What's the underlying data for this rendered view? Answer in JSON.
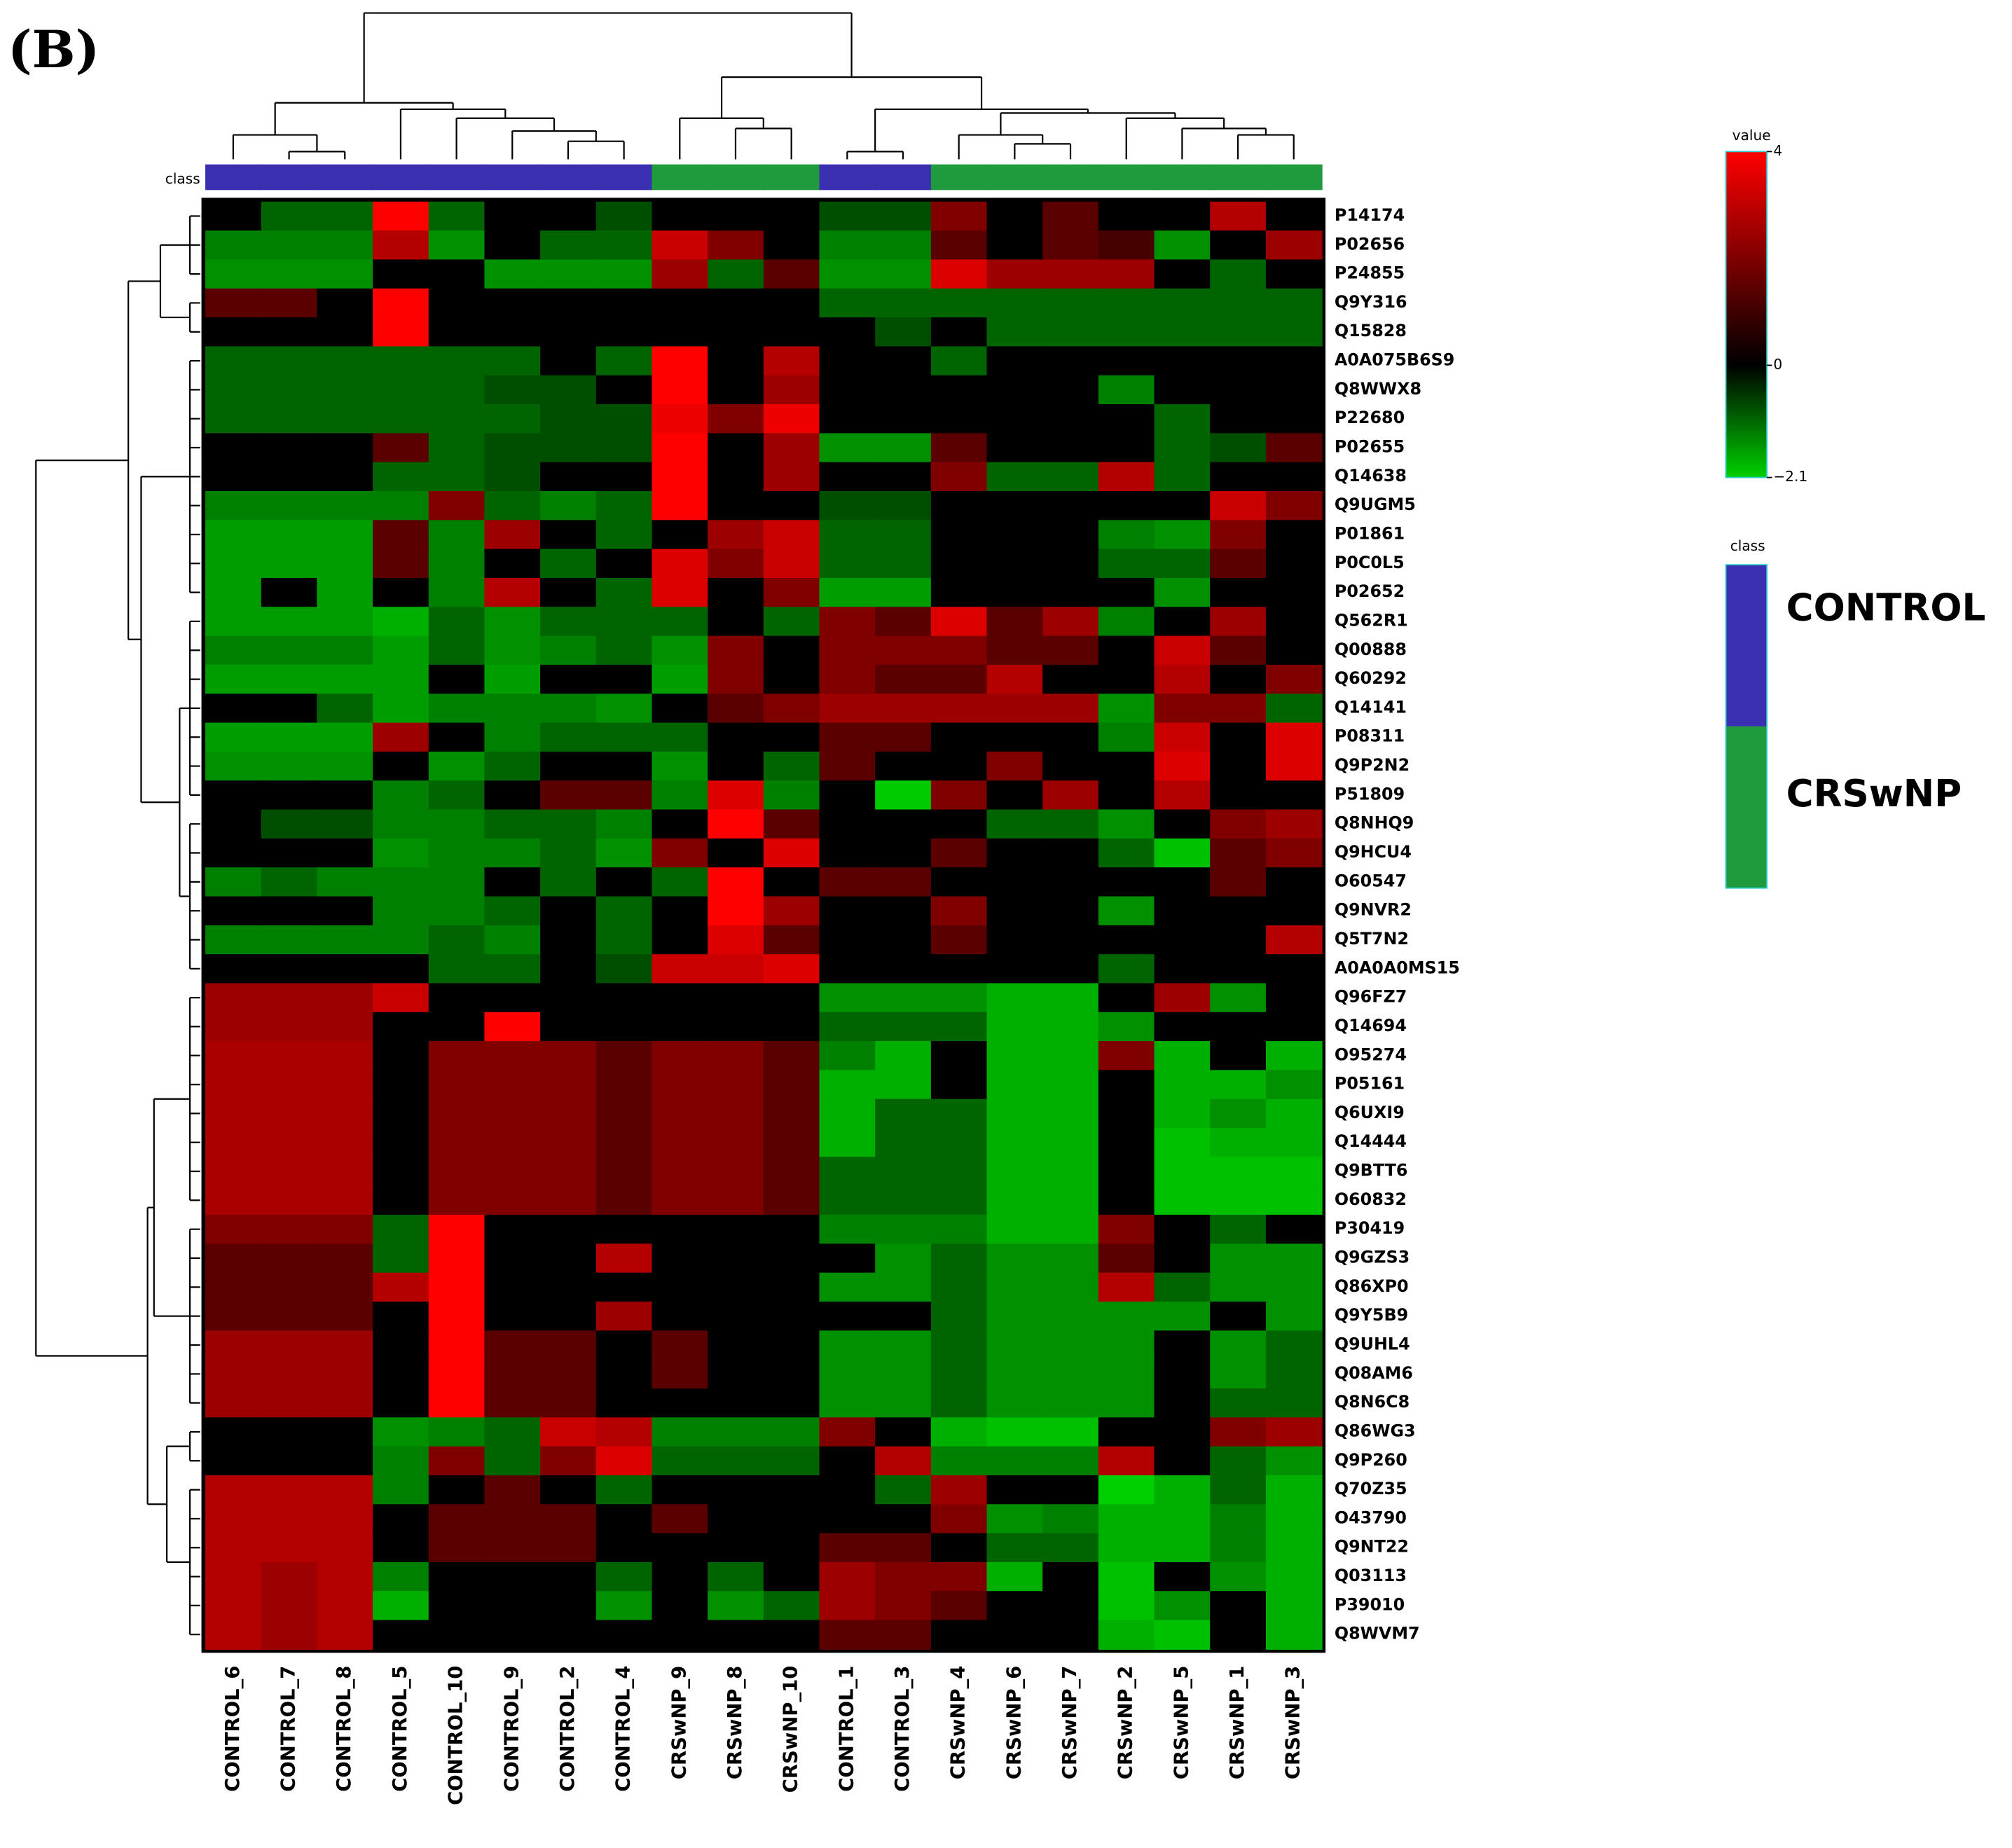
{
  "chart_data": {
    "type": "heatmap",
    "title": "(B)",
    "class_bar_label": "class",
    "columns": [
      "CONTROL_6",
      "CONTROL_7",
      "CONTROL_8",
      "CONTROL_5",
      "CONTROL_10",
      "CONTROL_9",
      "CONTROL_2",
      "CONTROL_4",
      "CRSwNP_9",
      "CRSwNP_8",
      "CRSwNP_10",
      "CONTROL_1",
      "CONTROL_3",
      "CRSwNP_4",
      "CRSwNP_6",
      "CRSwNP_7",
      "CRSwNP_2",
      "CRSwNP_5",
      "CRSwNP_1",
      "CRSwNP_3"
    ],
    "column_class": [
      "CONTROL",
      "CONTROL",
      "CONTROL",
      "CONTROL",
      "CONTROL",
      "CONTROL",
      "CONTROL",
      "CONTROL",
      "CRSwNP",
      "CRSwNP",
      "CRSwNP",
      "CONTROL",
      "CONTROL",
      "CRSwNP",
      "CRSwNP",
      "CRSwNP",
      "CRSwNP",
      "CRSwNP",
      "CRSwNP",
      "CRSwNP"
    ],
    "rows": [
      "P14174",
      "P02656",
      "P24855",
      "Q9Y316",
      "Q15828",
      "A0A075B6S9",
      "Q8WWX8",
      "P22680",
      "P02655",
      "Q14638",
      "Q9UGM5",
      "P01861",
      "P0C0L5",
      "P02652",
      "Q562R1",
      "Q00888",
      "Q60292",
      "Q14141",
      "P08311",
      "Q9P2N2",
      "P51809",
      "Q8NHQ9",
      "Q9HCU4",
      "O60547",
      "Q9NVR2",
      "Q5T7N2",
      "A0A0A0MS15",
      "Q96FZ7",
      "Q14694",
      "O95274",
      "P05161",
      "Q6UXI9",
      "Q14444",
      "Q9BTT6",
      "O60832",
      "P30419",
      "Q9GZS3",
      "Q86XP0",
      "Q9Y5B9",
      "Q9UHL4",
      "Q08AM6",
      "Q8N6C8",
      "Q86WG3",
      "Q9P260",
      "Q70Z35",
      "O43790",
      "Q9NT22",
      "Q03113",
      "P39010",
      "Q8WVM7"
    ],
    "values": [
      [
        0,
        -0.5,
        -0.5,
        4,
        -0.5,
        0,
        0,
        -0.3,
        0,
        0,
        0,
        -0.3,
        -0.3,
        1,
        0,
        0.5,
        0,
        0,
        2,
        0
      ],
      [
        -0.8,
        -0.8,
        -0.8,
        2,
        -1,
        0,
        -0.5,
        -0.5,
        2.5,
        1,
        0,
        -0.8,
        -0.8,
        0.5,
        0,
        0.5,
        0.3,
        -1,
        0,
        1.5
      ],
      [
        -1,
        -1,
        -1,
        0,
        0,
        -1,
        -1,
        -1,
        1.5,
        -0.5,
        0.5,
        -1,
        -1,
        3,
        1.5,
        1.5,
        1.5,
        0,
        -0.5,
        0
      ],
      [
        0.5,
        0.5,
        0,
        4,
        0,
        0,
        0,
        0,
        0,
        0,
        0,
        -0.5,
        -0.5,
        -0.5,
        -0.5,
        -0.5,
        -0.5,
        -0.5,
        -0.5,
        -0.5
      ],
      [
        0,
        0,
        0,
        4,
        0,
        0,
        0,
        0,
        0,
        0,
        0,
        0,
        -0.3,
        0,
        -0.5,
        -0.5,
        -0.5,
        -0.5,
        -0.5,
        -0.5
      ],
      [
        -0.5,
        -0.5,
        -0.5,
        -0.5,
        -0.5,
        -0.5,
        0,
        -0.5,
        4,
        0,
        2,
        0,
        0,
        -0.5,
        0,
        0,
        0,
        0,
        0,
        0
      ],
      [
        -0.5,
        -0.5,
        -0.5,
        -0.5,
        -0.5,
        -0.3,
        -0.3,
        0,
        4,
        0,
        1.5,
        0,
        0,
        0,
        0,
        0,
        -0.8,
        0,
        0,
        0
      ],
      [
        -0.5,
        -0.5,
        -0.5,
        -0.5,
        -0.5,
        -0.5,
        -0.3,
        -0.3,
        3.5,
        1,
        3.5,
        0,
        0,
        0,
        0,
        0,
        0,
        -0.5,
        0,
        0
      ],
      [
        0,
        0,
        0,
        0.5,
        -0.5,
        -0.3,
        -0.3,
        -0.3,
        4,
        0,
        1.5,
        -1,
        -1,
        0.5,
        0,
        0,
        0,
        -0.5,
        -0.3,
        0.5
      ],
      [
        0,
        0,
        0,
        -0.5,
        -0.5,
        -0.3,
        0,
        0,
        4,
        0,
        1.5,
        0,
        0,
        1,
        -0.5,
        -0.5,
        2,
        -0.5,
        0,
        0
      ],
      [
        -0.8,
        -0.8,
        -0.8,
        -0.8,
        1,
        -0.5,
        -0.8,
        -0.5,
        4,
        0,
        0,
        -0.3,
        -0.3,
        0,
        0,
        0,
        0,
        0,
        2.5,
        1
      ],
      [
        -1.2,
        -1.2,
        -1.2,
        0.5,
        -0.8,
        1.5,
        0,
        -0.5,
        0,
        1.5,
        2.5,
        -0.5,
        -0.5,
        0,
        0,
        0,
        -0.8,
        -1,
        1,
        0
      ],
      [
        -1.2,
        -1.2,
        -1.2,
        0.5,
        -0.8,
        0,
        -0.5,
        0,
        3,
        1,
        2.5,
        -0.5,
        -0.5,
        0,
        0,
        0,
        -0.5,
        -0.5,
        0.5,
        0
      ],
      [
        -1.2,
        0,
        -1.2,
        0,
        -0.8,
        2,
        0,
        -0.5,
        3,
        0,
        1,
        -1.2,
        -1.2,
        0,
        0,
        0,
        0,
        -1,
        0,
        0
      ],
      [
        -1.2,
        -1.2,
        -1.2,
        -1.5,
        -0.5,
        -1,
        -0.5,
        -0.5,
        -0.5,
        0,
        -0.5,
        1,
        0.5,
        3,
        0.5,
        1.5,
        -0.8,
        0,
        1.5,
        0
      ],
      [
        -0.8,
        -0.8,
        -0.8,
        -1.2,
        -0.5,
        -1,
        -0.8,
        -0.5,
        -1,
        1,
        0,
        1,
        1,
        1,
        0.5,
        0.5,
        0,
        2.5,
        0.5,
        0
      ],
      [
        -1.2,
        -1.2,
        -1.2,
        -1.2,
        0,
        -1.2,
        0,
        0,
        -1.2,
        1,
        0,
        1,
        0.5,
        0.5,
        2,
        0,
        0,
        2,
        0,
        1
      ],
      [
        0,
        0,
        -0.5,
        -1.2,
        -0.8,
        -0.8,
        -0.8,
        -1,
        0,
        0.5,
        1,
        1.5,
        1.5,
        1.5,
        1.5,
        1.5,
        -1,
        1,
        1,
        -0.5
      ],
      [
        -1.2,
        -1.2,
        -1.2,
        1.5,
        0,
        -0.8,
        -0.5,
        -0.5,
        -0.5,
        0,
        0,
        0.5,
        0.5,
        0,
        0,
        0,
        -0.8,
        2.5,
        0,
        3
      ],
      [
        -1,
        -1,
        -1,
        0,
        -1,
        -0.5,
        0,
        0,
        -1,
        0,
        -0.5,
        0.5,
        0,
        0,
        1,
        0,
        0,
        3,
        0,
        3
      ],
      [
        0,
        0,
        0,
        -0.8,
        -0.5,
        0,
        0.5,
        0.5,
        -0.8,
        3,
        -0.8,
        0,
        -2,
        1,
        0,
        1.5,
        0,
        2,
        0,
        0
      ],
      [
        0,
        -0.3,
        -0.3,
        -0.8,
        -0.8,
        -0.5,
        -0.5,
        -0.8,
        0,
        4,
        0.5,
        0,
        0,
        0,
        -0.5,
        -0.5,
        -1,
        0,
        1,
        1.5
      ],
      [
        0,
        0,
        0,
        -1,
        -0.8,
        -0.8,
        -0.5,
        -1,
        1,
        0,
        3,
        0,
        0,
        0.5,
        0,
        0,
        -0.5,
        -1.8,
        0.5,
        1
      ],
      [
        -0.8,
        -0.5,
        -0.8,
        -0.8,
        -0.8,
        0,
        -0.5,
        0,
        -0.5,
        4,
        0,
        0.5,
        0.5,
        0,
        0,
        0,
        0,
        0,
        0.5,
        0
      ],
      [
        0,
        0,
        0,
        -0.8,
        -0.8,
        -0.5,
        0,
        -0.5,
        0,
        4,
        1.5,
        0,
        0,
        1,
        0,
        0,
        -1,
        0,
        0,
        0
      ],
      [
        -0.8,
        -0.8,
        -0.8,
        -0.8,
        -0.5,
        -0.8,
        0,
        -0.5,
        0,
        3,
        0.5,
        0,
        0,
        0.5,
        0,
        0,
        0,
        0,
        0,
        2
      ],
      [
        0,
        0,
        0,
        0,
        -0.5,
        -0.5,
        0,
        -0.3,
        2.5,
        2.5,
        3,
        0,
        0,
        0,
        0,
        0,
        -0.5,
        0,
        0,
        0
      ],
      [
        1.5,
        1.5,
        1.5,
        2.5,
        0,
        0,
        0,
        0,
        0,
        0,
        0,
        -1,
        -1,
        -1,
        -1.5,
        -1.5,
        0,
        1.5,
        -1,
        0
      ],
      [
        1.5,
        1.5,
        1.5,
        0,
        0,
        4,
        0,
        0,
        0,
        0,
        0,
        -0.5,
        -0.5,
        -0.5,
        -1.5,
        -1.5,
        -1,
        0,
        0,
        0
      ],
      [
        1.8,
        1.8,
        1.8,
        0,
        1,
        1,
        1,
        0.5,
        1,
        1,
        0.5,
        -0.8,
        -1.5,
        0,
        -1.5,
        -1.5,
        1,
        -1.5,
        0,
        -1.5
      ],
      [
        1.8,
        1.8,
        1.8,
        0,
        1,
        1,
        1,
        0.5,
        1,
        1,
        0.5,
        -1.5,
        -1.5,
        0,
        -1.5,
        -1.5,
        0,
        -1.5,
        -1.5,
        -1
      ],
      [
        1.8,
        1.8,
        1.8,
        0,
        1,
        1,
        1,
        0.5,
        1,
        1,
        0.5,
        -1.5,
        -0.5,
        -0.5,
        -1.5,
        -1.5,
        0,
        -1.5,
        -1,
        -1.5
      ],
      [
        1.8,
        1.8,
        1.8,
        0,
        1,
        1,
        1,
        0.5,
        1,
        1,
        0.5,
        -1.5,
        -0.5,
        -0.5,
        -1.5,
        -1.5,
        0,
        -1.8,
        -1.5,
        -1.5
      ],
      [
        1.8,
        1.8,
        1.8,
        0,
        1,
        1,
        1,
        0.5,
        1,
        1,
        0.5,
        -0.5,
        -0.5,
        -0.5,
        -1.5,
        -1.5,
        0,
        -1.8,
        -1.8,
        -1.8
      ],
      [
        1.8,
        1.8,
        1.8,
        0,
        1,
        1,
        1,
        0.5,
        1,
        1,
        0.5,
        -0.5,
        -0.5,
        -0.5,
        -1.5,
        -1.5,
        0,
        -1.8,
        -1.8,
        -1.8
      ],
      [
        1,
        1,
        1,
        -0.5,
        4,
        0,
        0,
        0,
        0,
        0,
        0,
        -0.8,
        -0.8,
        -0.8,
        -1.5,
        -1.5,
        1,
        0,
        -0.5,
        0
      ],
      [
        0.5,
        0.5,
        0.5,
        -0.5,
        4,
        0,
        0,
        2,
        0,
        0,
        0,
        0,
        -1,
        -0.5,
        -1,
        -1,
        0.5,
        0,
        -1,
        -1
      ],
      [
        0.5,
        0.5,
        0.5,
        2,
        4,
        0,
        0,
        0,
        0,
        0,
        0,
        -1,
        -1,
        -0.5,
        -1,
        -1,
        2,
        -0.5,
        -1,
        -1
      ],
      [
        0.5,
        0.5,
        0.5,
        0,
        4,
        0,
        0,
        1.5,
        0,
        0,
        0,
        0,
        0,
        -0.5,
        -1,
        -1,
        -1,
        -1,
        0,
        -1
      ],
      [
        1.5,
        1.5,
        1.5,
        0,
        4,
        0.5,
        0.5,
        0,
        0.5,
        0,
        0,
        -1,
        -1,
        -0.5,
        -1,
        -1,
        -1,
        0,
        -1,
        -0.5
      ],
      [
        1.5,
        1.5,
        1.5,
        0,
        4,
        0.5,
        0.5,
        0,
        0.5,
        0,
        0,
        -1,
        -1,
        -0.5,
        -1,
        -1,
        -1,
        0,
        -1,
        -0.5
      ],
      [
        1.5,
        1.5,
        1.5,
        0,
        4,
        0.5,
        0.5,
        0,
        0,
        0,
        0,
        -1,
        -1,
        -0.5,
        -1,
        -1,
        -1,
        0,
        -0.5,
        -0.5
      ],
      [
        0,
        0,
        0,
        -1,
        -0.8,
        -0.5,
        2.5,
        2,
        -0.8,
        -0.8,
        -0.8,
        1,
        0,
        -1.5,
        -1.8,
        -1.8,
        0,
        0,
        1,
        1.5
      ],
      [
        0,
        0,
        0,
        -0.8,
        1,
        -0.5,
        1,
        3,
        -0.5,
        -0.5,
        -0.5,
        0,
        2,
        -0.8,
        -0.8,
        -0.8,
        2,
        0,
        -0.5,
        -1
      ],
      [
        2,
        2,
        2,
        -0.8,
        0,
        0.5,
        0,
        -0.5,
        0,
        0,
        0,
        0,
        -0.5,
        1.5,
        0,
        0,
        -2.1,
        -1.5,
        -0.5,
        -1.5
      ],
      [
        2,
        2,
        2,
        0,
        0.5,
        0.5,
        0.5,
        0,
        0.5,
        0,
        0,
        0,
        0,
        1,
        -1,
        -0.8,
        -1.5,
        -1.5,
        -0.8,
        -1.5
      ],
      [
        2,
        2,
        2,
        0,
        0.5,
        0.5,
        0.5,
        0,
        0,
        0,
        0,
        0.5,
        0.5,
        0,
        -0.5,
        -0.5,
        -1.5,
        -1.5,
        -0.8,
        -1.5
      ],
      [
        2,
        1.5,
        2,
        -0.8,
        0,
        0,
        0,
        -0.5,
        0,
        -0.5,
        0,
        1.5,
        1,
        1,
        -1.5,
        0,
        -1.8,
        0,
        -1,
        -1.5
      ],
      [
        2,
        1.5,
        2,
        -1.5,
        0,
        0,
        0,
        -1,
        0,
        -1,
        -0.5,
        1.5,
        1,
        0.5,
        0,
        0,
        -1.8,
        -1,
        0,
        -1.5
      ],
      [
        2,
        1.5,
        2,
        0,
        0,
        0,
        0,
        0,
        0,
        0,
        0,
        0.5,
        0.5,
        0,
        0,
        0,
        -1.5,
        -1.8,
        0,
        -1.5
      ]
    ],
    "vlim": [
      -2.1,
      4
    ],
    "colormap": {
      "low": "#00d000",
      "mid": "#000000",
      "high": "#ff0000"
    },
    "colorbar": {
      "title": "value",
      "ticks": [
        4,
        0,
        {
          "value": -2.1,
          "label": "−2.1"
        }
      ]
    },
    "classes_title": "class",
    "classes": [
      {
        "name": "CONTROL",
        "color": "#3a2fb0"
      },
      {
        "name": "CRSwNP",
        "color": "#1f9a3c"
      }
    ]
  }
}
